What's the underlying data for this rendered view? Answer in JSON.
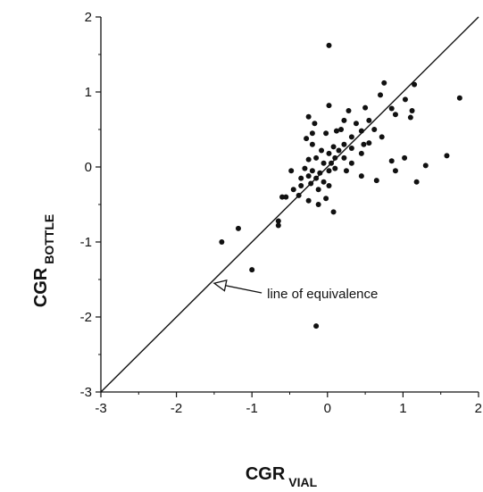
{
  "chart_data": {
    "type": "scatter",
    "xlabel_main": "CGR",
    "xlabel_sub": "VIAL",
    "ylabel_main": "CGR",
    "ylabel_sub": "BOTTLE",
    "xlim": [
      -3,
      2
    ],
    "ylim": [
      -3,
      2
    ],
    "x_ticks": [
      -3,
      -2,
      -1,
      0,
      1,
      2
    ],
    "y_ticks": [
      -3,
      -2,
      -1,
      0,
      1,
      2
    ],
    "x_tick_labels": [
      "-3",
      "-2",
      "-1",
      "0",
      "1",
      "2"
    ],
    "y_tick_labels": [
      "-3",
      "-2",
      "-1",
      "0",
      "1",
      "2"
    ],
    "grid": false,
    "reference_line": {
      "from": [
        -3,
        -3
      ],
      "to": [
        2,
        2
      ]
    },
    "annotation": {
      "text": "line of equivalence",
      "arrow_to": [
        -1.5,
        -1.55
      ],
      "text_at": [
        -0.8,
        -1.75
      ]
    },
    "points": [
      [
        0.02,
        1.62
      ],
      [
        0.75,
        1.12
      ],
      [
        1.75,
        0.92
      ],
      [
        1.15,
        1.1
      ],
      [
        0.7,
        0.96
      ],
      [
        0.02,
        0.82
      ],
      [
        0.28,
        0.75
      ],
      [
        0.5,
        0.79
      ],
      [
        0.85,
        0.78
      ],
      [
        1.03,
        0.9
      ],
      [
        1.12,
        0.75
      ],
      [
        1.1,
        0.66
      ],
      [
        0.9,
        0.7
      ],
      [
        0.55,
        0.62
      ],
      [
        0.38,
        0.58
      ],
      [
        0.22,
        0.62
      ],
      [
        -0.25,
        0.67
      ],
      [
        -0.17,
        0.58
      ],
      [
        -0.2,
        0.45
      ],
      [
        -0.02,
        0.45
      ],
      [
        0.12,
        0.48
      ],
      [
        0.18,
        0.5
      ],
      [
        0.32,
        0.4
      ],
      [
        0.45,
        0.48
      ],
      [
        0.62,
        0.5
      ],
      [
        0.72,
        0.4
      ],
      [
        0.48,
        0.3
      ],
      [
        0.32,
        0.25
      ],
      [
        0.22,
        0.3
      ],
      [
        0.15,
        0.22
      ],
      [
        0.08,
        0.27
      ],
      [
        0.02,
        0.18
      ],
      [
        -0.08,
        0.22
      ],
      [
        -0.2,
        0.3
      ],
      [
        -0.28,
        0.38
      ],
      [
        -0.25,
        0.1
      ],
      [
        -0.15,
        0.12
      ],
      [
        -0.05,
        0.05
      ],
      [
        0.05,
        0.05
      ],
      [
        0.1,
        0.12
      ],
      [
        0.22,
        0.12
      ],
      [
        0.32,
        0.05
      ],
      [
        0.45,
        0.18
      ],
      [
        0.55,
        0.32
      ],
      [
        0.25,
        -0.05
      ],
      [
        0.1,
        -0.02
      ],
      [
        0.02,
        -0.05
      ],
      [
        -0.1,
        -0.08
      ],
      [
        -0.2,
        -0.05
      ],
      [
        -0.3,
        -0.02
      ],
      [
        -0.48,
        -0.05
      ],
      [
        -0.35,
        -0.15
      ],
      [
        -0.25,
        -0.12
      ],
      [
        -0.15,
        -0.15
      ],
      [
        -0.05,
        -0.2
      ],
      [
        0.02,
        -0.25
      ],
      [
        -0.12,
        -0.3
      ],
      [
        -0.22,
        -0.22
      ],
      [
        -0.35,
        -0.25
      ],
      [
        -0.45,
        -0.3
      ],
      [
        -0.55,
        -0.4
      ],
      [
        -0.6,
        -0.4
      ],
      [
        -0.38,
        -0.38
      ],
      [
        -0.25,
        -0.45
      ],
      [
        -0.12,
        -0.5
      ],
      [
        -0.02,
        -0.42
      ],
      [
        0.08,
        -0.6
      ],
      [
        0.45,
        -0.12
      ],
      [
        0.65,
        -0.18
      ],
      [
        0.9,
        -0.05
      ],
      [
        1.02,
        0.12
      ],
      [
        1.3,
        0.02
      ],
      [
        1.58,
        0.15
      ],
      [
        1.18,
        -0.2
      ],
      [
        0.85,
        0.08
      ],
      [
        -0.65,
        -0.72
      ],
      [
        -0.65,
        -0.78
      ],
      [
        -1.18,
        -0.82
      ],
      [
        -1.4,
        -1.0
      ],
      [
        -1.0,
        -1.37
      ],
      [
        -0.15,
        -2.12
      ]
    ]
  }
}
